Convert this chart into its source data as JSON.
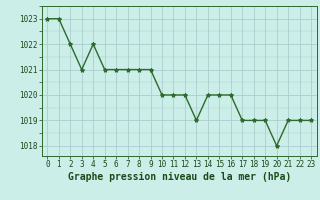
{
  "x": [
    0,
    1,
    2,
    3,
    4,
    5,
    6,
    7,
    8,
    9,
    10,
    11,
    12,
    13,
    14,
    15,
    16,
    17,
    18,
    19,
    20,
    21,
    22,
    23
  ],
  "y": [
    1023,
    1023,
    1022,
    1021,
    1022,
    1021,
    1021,
    1021,
    1021,
    1021,
    1020,
    1020,
    1020,
    1019,
    1020,
    1020,
    1020,
    1019,
    1019,
    1019,
    1018,
    1019,
    1019,
    1019
  ],
  "line_color": "#2d6a2d",
  "marker": "*",
  "marker_size": 3,
  "bg_color": "#cceee8",
  "grid_color": "#aacece",
  "xlabel": "Graphe pression niveau de la mer (hPa)",
  "xlabel_fontsize": 7,
  "xlabel_color": "#1a4a1a",
  "ytick_labels": [
    1018,
    1019,
    1020,
    1021,
    1022,
    1023
  ],
  "ylim": [
    1017.6,
    1023.5
  ],
  "xlim": [
    -0.5,
    23.5
  ],
  "xtick_labels": [
    "0",
    "1",
    "2",
    "3",
    "4",
    "5",
    "6",
    "7",
    "8",
    "9",
    "10",
    "11",
    "12",
    "13",
    "14",
    "15",
    "16",
    "17",
    "18",
    "19",
    "20",
    "21",
    "22",
    "23"
  ],
  "tick_fontsize": 5.5,
  "tick_color": "#1a4a1a"
}
